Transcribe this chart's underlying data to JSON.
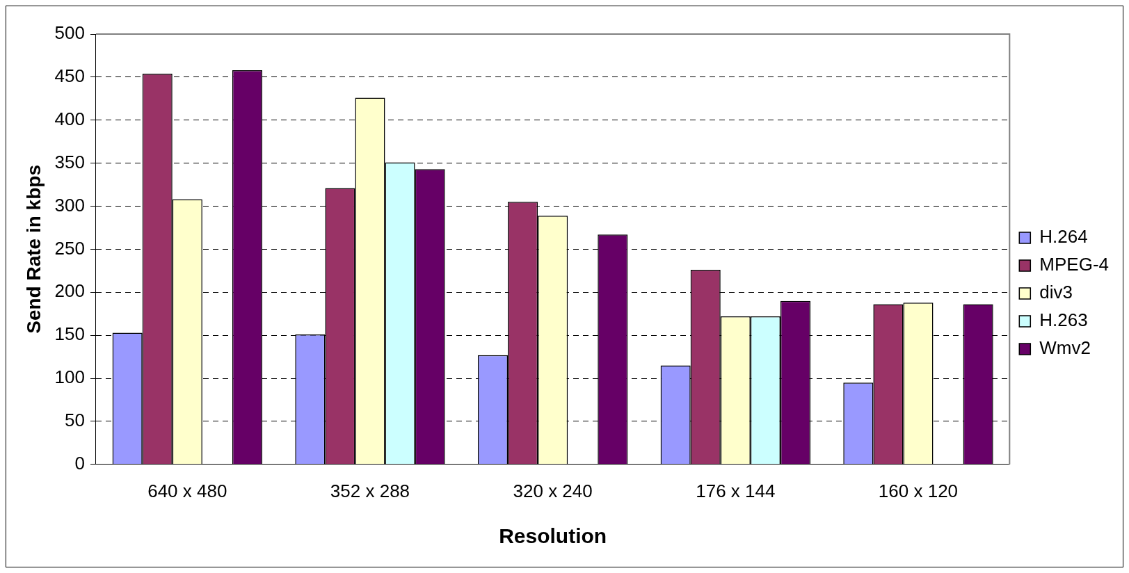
{
  "chart_data": {
    "type": "bar",
    "xlabel": "Resolution",
    "ylabel": "Send Rate in kbps",
    "categories": [
      "640 x 480",
      "352 x 288",
      "320 x 240",
      "176 x 144",
      "160 x 120"
    ],
    "series": [
      {
        "name": "H.264",
        "color": "#9999ff",
        "values": [
          153,
          151,
          127,
          115,
          95
        ]
      },
      {
        "name": "MPEG-4",
        "color": "#993366",
        "values": [
          454,
          321,
          305,
          226,
          186
        ]
      },
      {
        "name": "div3",
        "color": "#ffffcc",
        "values": [
          308,
          426,
          289,
          172,
          188
        ]
      },
      {
        "name": "H.263",
        "color": "#ccffff",
        "values": [
          null,
          351,
          null,
          172,
          null
        ]
      },
      {
        "name": "Wmv2",
        "color": "#660066",
        "values": [
          458,
          343,
          267,
          190,
          186
        ]
      }
    ],
    "ylim": [
      0,
      500
    ],
    "yticks": [
      0,
      50,
      100,
      150,
      200,
      250,
      300,
      350,
      400,
      450,
      500
    ],
    "grid": "y",
    "legend": "right"
  }
}
